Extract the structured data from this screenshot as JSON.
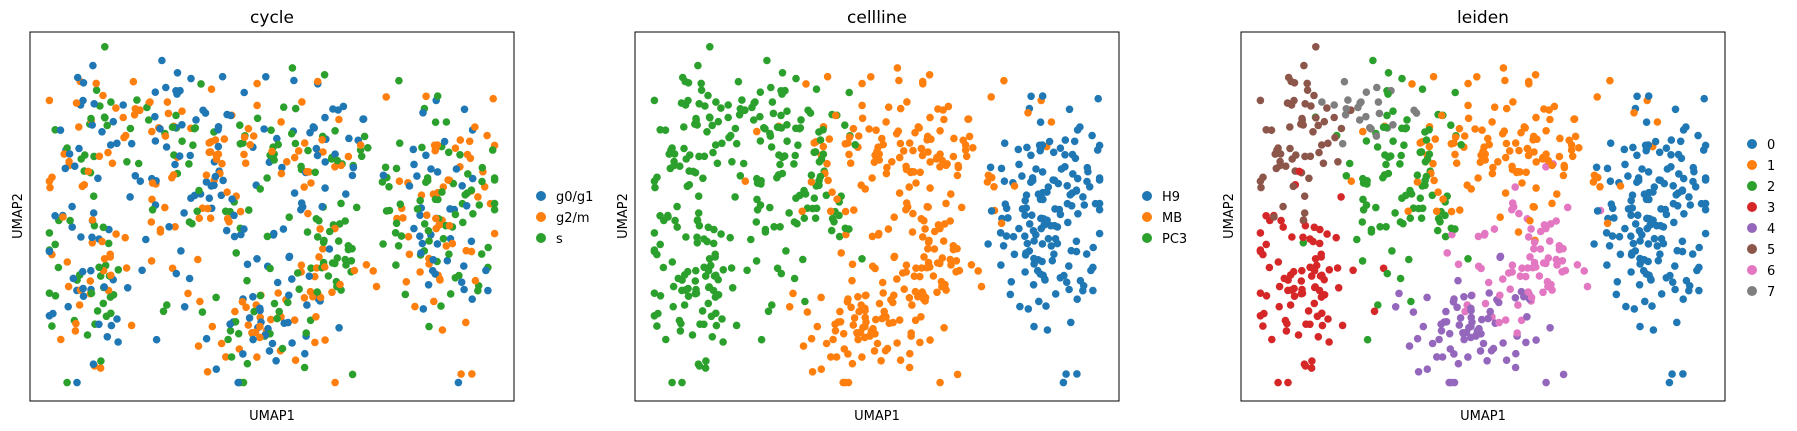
{
  "chart_data": [
    {
      "type": "scatter",
      "title": "cycle",
      "xlabel": "UMAP1",
      "ylabel": "UMAP2",
      "grid": false,
      "ticks": false,
      "legend_placement": "right",
      "series": [
        {
          "name": "g0/g1",
          "color": "#1f77b4"
        },
        {
          "name": "g2/m",
          "color": "#ff7f0e"
        },
        {
          "name": "s",
          "color": "#2ca02c"
        }
      ]
    },
    {
      "type": "scatter",
      "title": "cellline",
      "xlabel": "UMAP1",
      "ylabel": "UMAP2",
      "grid": false,
      "ticks": false,
      "legend_placement": "right",
      "series": [
        {
          "name": "H9",
          "color": "#1f77b4"
        },
        {
          "name": "MB",
          "color": "#ff7f0e"
        },
        {
          "name": "PC3",
          "color": "#2ca02c"
        }
      ]
    },
    {
      "type": "scatter",
      "title": "leiden",
      "xlabel": "UMAP1",
      "ylabel": "UMAP2",
      "grid": false,
      "ticks": false,
      "legend_placement": "right",
      "series": [
        {
          "name": "0",
          "color": "#1f77b4"
        },
        {
          "name": "1",
          "color": "#ff7f0e"
        },
        {
          "name": "2",
          "color": "#2ca02c"
        },
        {
          "name": "3",
          "color": "#d62728"
        },
        {
          "name": "4",
          "color": "#9467bd"
        },
        {
          "name": "5",
          "color": "#8c564b"
        },
        {
          "name": "6",
          "color": "#e377c2"
        },
        {
          "name": "7",
          "color": "#7f7f7f"
        }
      ]
    }
  ]
}
